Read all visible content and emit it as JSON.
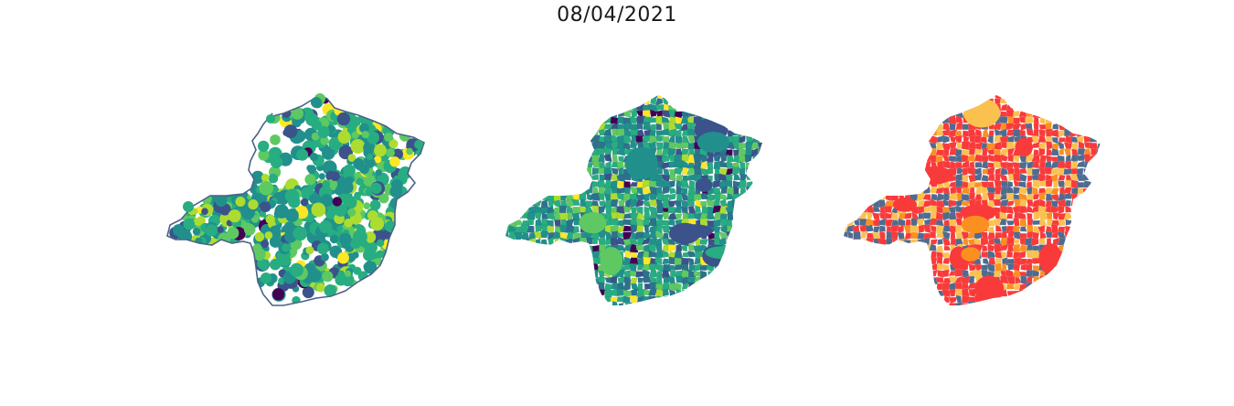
{
  "title": "08/04/2021",
  "panels": [
    {
      "id": "dots",
      "kind": "proportional-symbol-map",
      "outline_color": "#4a6286",
      "palette": [
        "#440154",
        "#3b528b",
        "#21908c",
        "#27ad81",
        "#5ec962",
        "#addc30",
        "#fde725"
      ]
    },
    {
      "id": "choro",
      "kind": "choropleth",
      "palette": [
        "#440154",
        "#3b528b",
        "#2c728e",
        "#21908c",
        "#27ad81",
        "#5ec962",
        "#addc30",
        "#fde725"
      ]
    },
    {
      "id": "risk",
      "kind": "categorical-choropleth",
      "palette": [
        "#f93a3a",
        "#fbc14f",
        "#fb8f20",
        "#4f6b8f"
      ]
    }
  ]
}
